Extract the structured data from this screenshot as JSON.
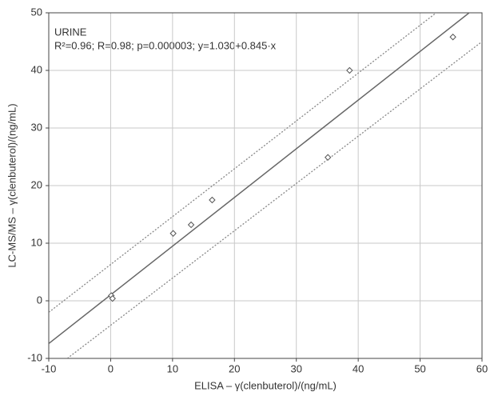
{
  "chart_data": {
    "type": "scatter",
    "annotations": [
      "URINE",
      "R²=0.96;  R=0.98;  p=0.000003;  y=1.030+0.845·x"
    ],
    "x_label": "ELISA – γ(clenbuterol)/(ng/mL)",
    "y_label": "LC-MS/MS – γ(clenbuterol)/(ng/mL)",
    "xlim": [
      -10,
      60
    ],
    "ylim": [
      -10,
      50
    ],
    "xticks": [
      -10,
      0,
      10,
      20,
      30,
      40,
      50,
      60
    ],
    "yticks": [
      -10,
      0,
      10,
      20,
      30,
      40,
      50
    ],
    "grid": true,
    "points": {
      "color": "#555555",
      "x": [
        0.1,
        0.3,
        10.1,
        13.0,
        16.4,
        35.1,
        38.6,
        55.3
      ],
      "y": [
        0.9,
        0.4,
        11.7,
        13.2,
        17.5,
        24.9,
        40.0,
        45.8
      ]
    },
    "lines": [
      {
        "color": "#666666",
        "style": "solid",
        "x": [
          -10,
          58.4
        ],
        "y": [
          -7.42,
          50.4
        ]
      },
      {
        "color": "#888888",
        "style": "dotted",
        "x": [
          -10,
          52.6
        ],
        "y": [
          -2,
          50
        ]
      },
      {
        "color": "#888888",
        "style": "dotted",
        "x": [
          -7,
          60
        ],
        "y": [
          -10,
          45
        ]
      }
    ]
  }
}
